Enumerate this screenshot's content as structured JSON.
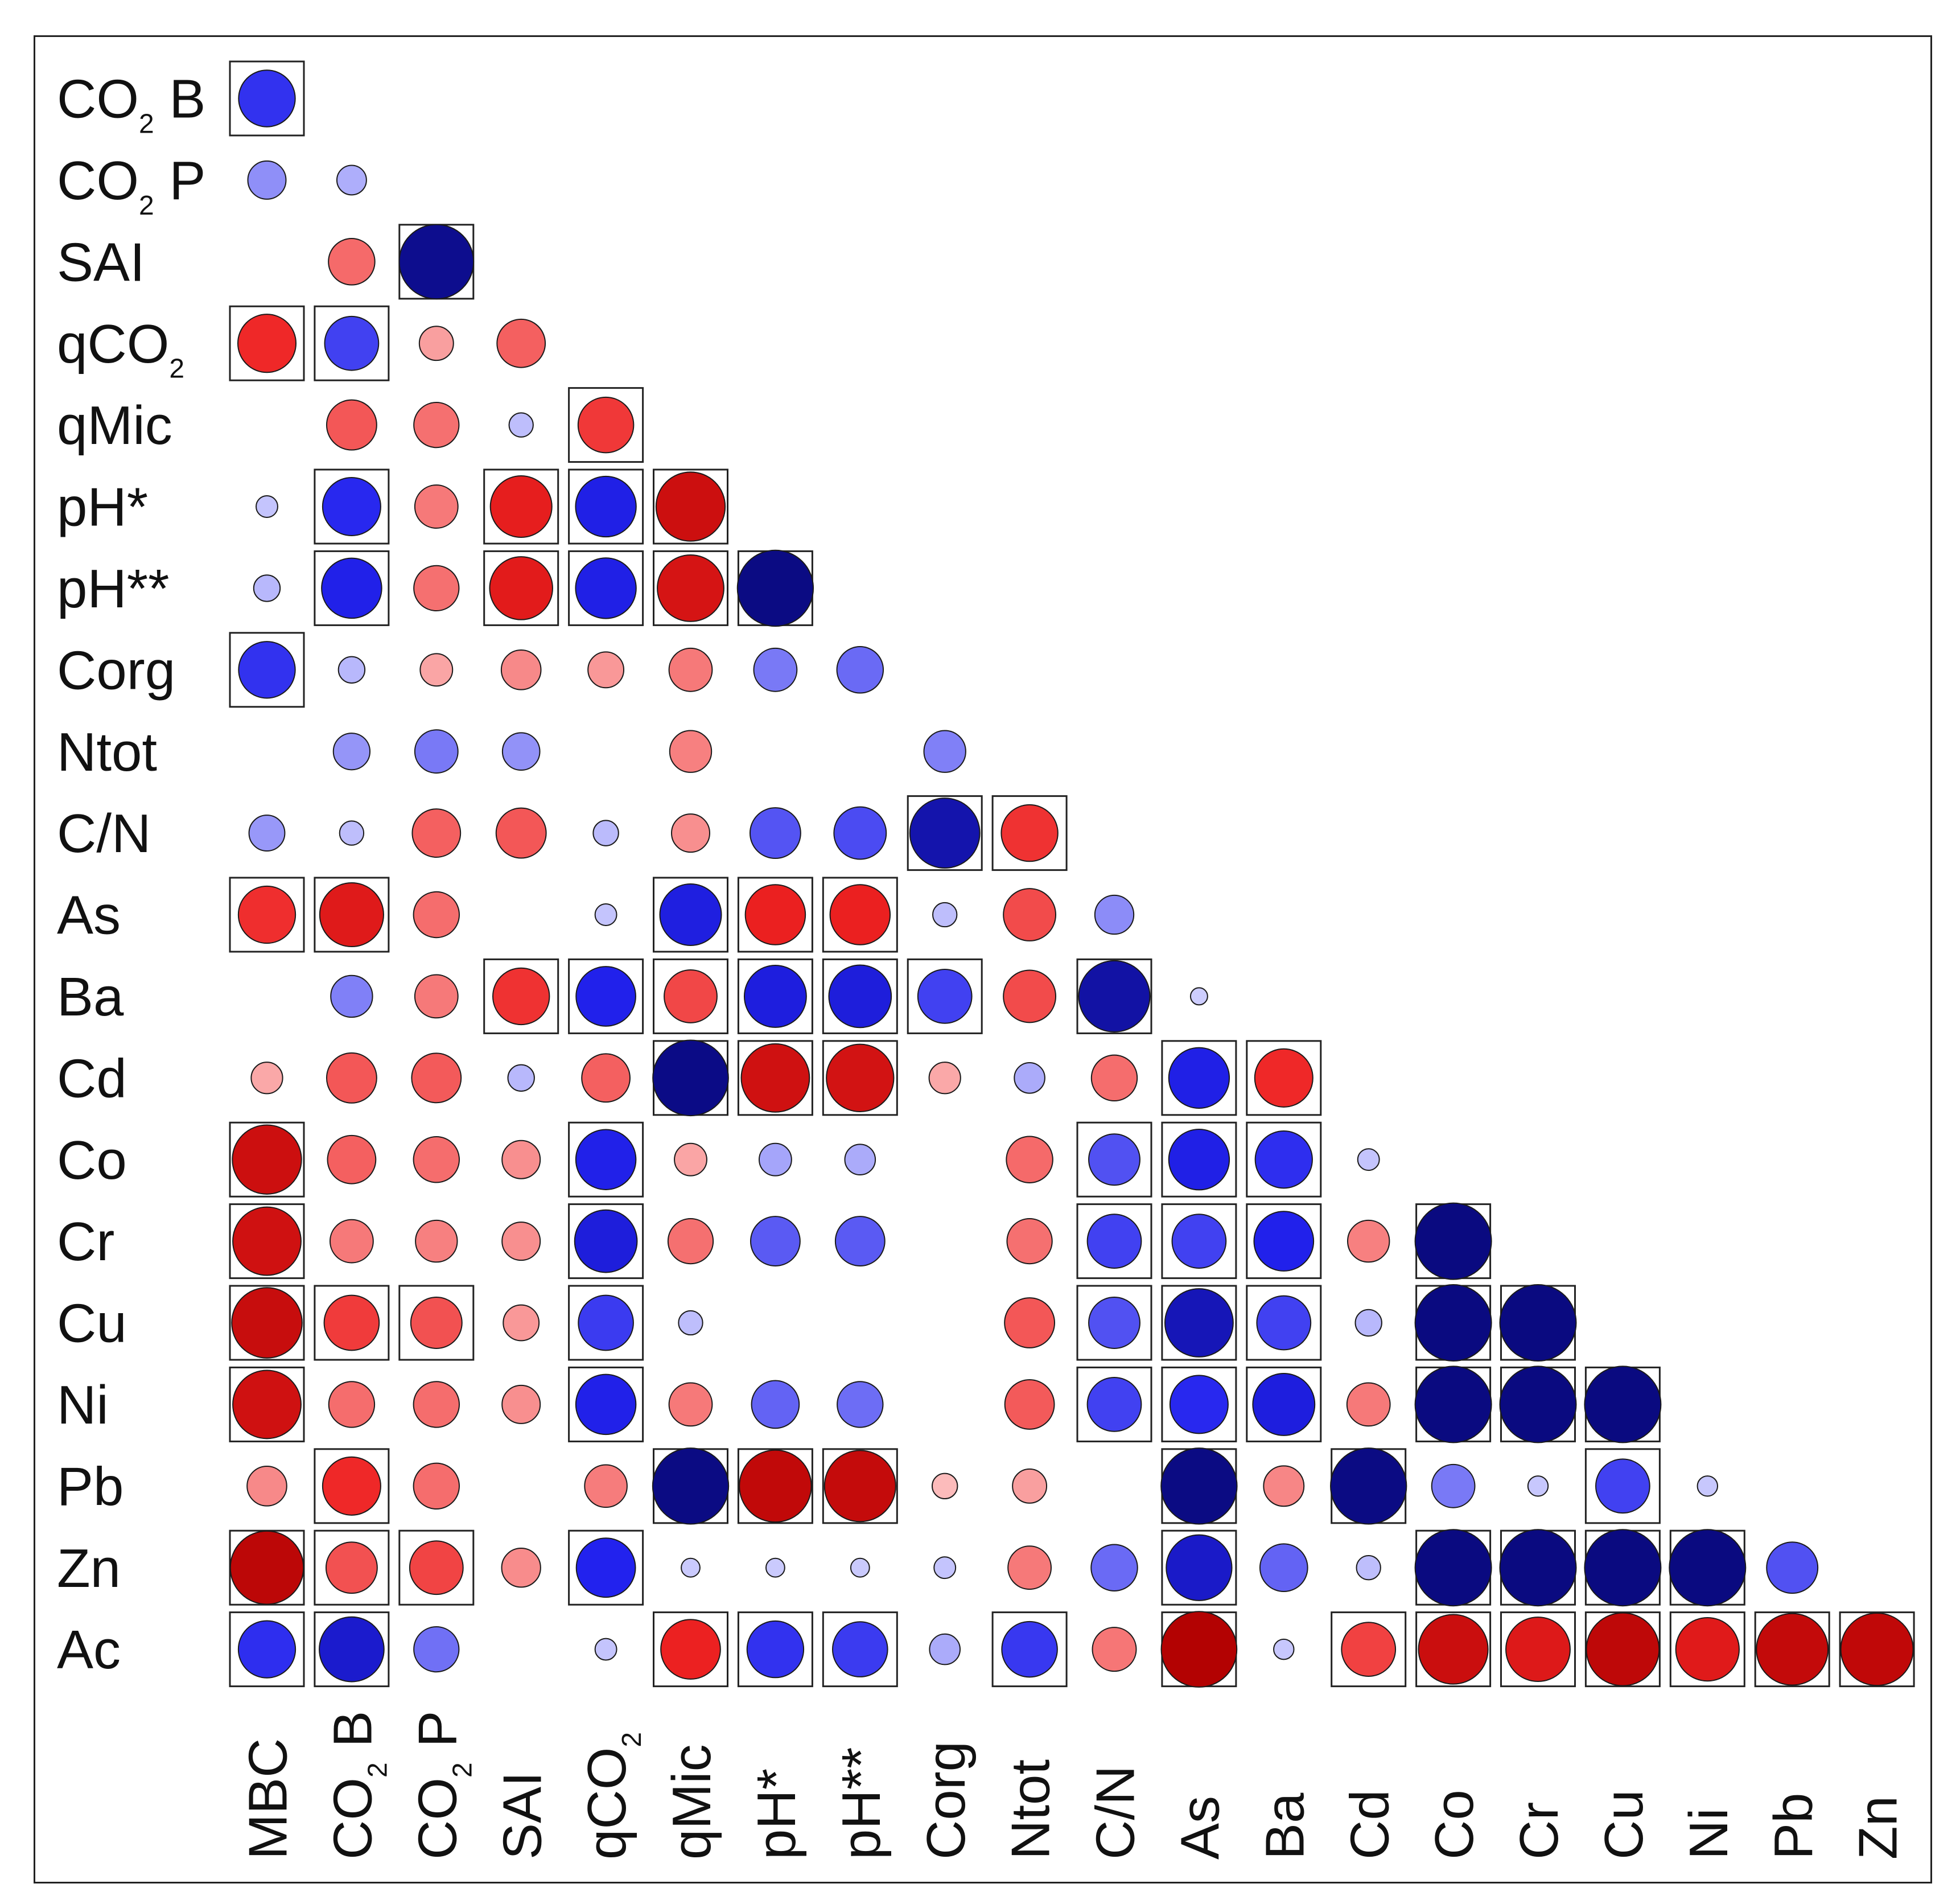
{
  "chart_data": {
    "type": "correlogram",
    "title": "",
    "xlabel": "",
    "ylabel": "",
    "value_range": [
      -1,
      1
    ],
    "positive_color": "#0000cc",
    "negative_color": "#dd0000",
    "significance_marker": "square",
    "columns": [
      {
        "base": "MBC",
        "sub": ""
      },
      {
        "base": "CO",
        "sub": "2",
        "after": " B"
      },
      {
        "base": "CO",
        "sub": "2",
        "after": " P"
      },
      {
        "base": "SAI",
        "sub": ""
      },
      {
        "base": "qCO",
        "sub": "2"
      },
      {
        "base": "qMic",
        "sub": ""
      },
      {
        "base": "pH*",
        "sub": ""
      },
      {
        "base": "pH**",
        "sub": ""
      },
      {
        "base": "Corg",
        "sub": ""
      },
      {
        "base": "Ntot",
        "sub": ""
      },
      {
        "base": "C/N",
        "sub": ""
      },
      {
        "base": "As",
        "sub": ""
      },
      {
        "base": "Ba",
        "sub": ""
      },
      {
        "base": "Cd",
        "sub": ""
      },
      {
        "base": "Co",
        "sub": ""
      },
      {
        "base": "Cr",
        "sub": ""
      },
      {
        "base": "Cu",
        "sub": ""
      },
      {
        "base": "Ni",
        "sub": ""
      },
      {
        "base": "Pb",
        "sub": ""
      },
      {
        "base": "Zn",
        "sub": ""
      }
    ],
    "rows": [
      {
        "base": "CO",
        "sub": "2",
        "after": " B"
      },
      {
        "base": "CO",
        "sub": "2",
        "after": " P"
      },
      {
        "base": "SAI",
        "sub": ""
      },
      {
        "base": "qCO",
        "sub": "2"
      },
      {
        "base": "qMic",
        "sub": ""
      },
      {
        "base": "pH*",
        "sub": ""
      },
      {
        "base": "pH**",
        "sub": ""
      },
      {
        "base": "Corg",
        "sub": ""
      },
      {
        "base": "Ntot",
        "sub": ""
      },
      {
        "base": "C/N",
        "sub": ""
      },
      {
        "base": "As",
        "sub": ""
      },
      {
        "base": "Ba",
        "sub": ""
      },
      {
        "base": "Cd",
        "sub": ""
      },
      {
        "base": "Co",
        "sub": ""
      },
      {
        "base": "Cr",
        "sub": ""
      },
      {
        "base": "Cu",
        "sub": ""
      },
      {
        "base": "Ni",
        "sub": ""
      },
      {
        "base": "Pb",
        "sub": ""
      },
      {
        "base": "Zn",
        "sub": ""
      },
      {
        "base": "Ac",
        "sub": ""
      }
    ],
    "matrix": [
      [
        0.55
      ],
      [
        0.25,
        0.15
      ],
      [
        null,
        -0.37,
        0.95
      ],
      [
        -0.58,
        0.5,
        -0.2,
        -0.4
      ],
      [
        null,
        -0.43,
        -0.35,
        0.1,
        -0.53
      ],
      [
        0.08,
        0.58,
        -0.32,
        -0.65,
        0.63,
        -0.82
      ],
      [
        0.12,
        0.62,
        -0.35,
        -0.68,
        0.63,
        -0.76,
        0.99
      ],
      [
        0.55,
        0.12,
        -0.18,
        -0.27,
        -0.22,
        -0.32,
        0.32,
        0.37
      ],
      [
        null,
        0.23,
        0.32,
        0.24,
        null,
        -0.3,
        null,
        null,
        0.3
      ],
      [
        0.22,
        0.1,
        -0.4,
        -0.43,
        0.11,
        -0.25,
        0.44,
        0.47,
        0.84,
        -0.55
      ],
      [
        -0.56,
        -0.7,
        -0.36,
        null,
        0.08,
        0.65,
        -0.62,
        -0.62,
        0.1,
        -0.47,
        0.26
      ],
      [
        null,
        0.3,
        -0.32,
        -0.55,
        0.61,
        -0.48,
        0.66,
        0.67,
        0.5,
        -0.47,
        0.87,
        0.05
      ],
      [
        -0.17,
        -0.43,
        -0.42,
        0.12,
        -0.4,
        0.98,
        -0.8,
        -0.78,
        -0.17,
        0.16,
        -0.36,
        0.63,
        -0.58
      ],
      [
        -0.82,
        -0.4,
        -0.36,
        -0.25,
        0.62,
        -0.18,
        0.18,
        0.16,
        null,
        -0.37,
        0.45,
        0.63,
        0.56,
        0.08
      ],
      [
        -0.8,
        -0.32,
        -0.3,
        -0.25,
        0.67,
        -0.35,
        0.42,
        0.42,
        null,
        -0.35,
        0.5,
        0.5,
        0.61,
        -0.3,
        1.0
      ],
      [
        -0.85,
        -0.52,
        -0.45,
        -0.22,
        0.52,
        0.1,
        null,
        null,
        null,
        -0.43,
        0.45,
        0.8,
        0.5,
        0.12,
        1.0,
        1.0
      ],
      [
        -0.8,
        -0.36,
        -0.36,
        -0.25,
        0.62,
        -0.32,
        0.39,
        0.36,
        null,
        -0.42,
        0.5,
        0.58,
        0.66,
        -0.32,
        1.0,
        1.0,
        1.0
      ],
      [
        -0.27,
        -0.58,
        -0.36,
        null,
        -0.31,
        0.99,
        -0.89,
        -0.87,
        -0.11,
        -0.2,
        null,
        0.99,
        -0.28,
        0.99,
        0.32,
        0.07,
        0.5,
        0.07
      ],
      [
        -0.92,
        -0.45,
        -0.49,
        -0.26,
        0.6,
        0.06,
        0.06,
        0.06,
        0.08,
        -0.32,
        0.37,
        0.74,
        0.39,
        0.1,
        1.0,
        1.0,
        1.0,
        1.0,
        0.45
      ],
      [
        0.56,
        0.72,
        0.35,
        null,
        0.08,
        -0.61,
        0.55,
        0.52,
        0.16,
        0.53,
        -0.33,
        -0.98,
        0.07,
        -0.5,
        -0.83,
        -0.71,
        -0.91,
        -0.69,
        -0.88,
        -0.9
      ]
    ],
    "significant": [
      [
        true
      ],
      [
        false,
        false
      ],
      [
        false,
        false,
        true
      ],
      [
        true,
        true,
        false,
        false
      ],
      [
        false,
        false,
        false,
        false,
        true
      ],
      [
        false,
        true,
        false,
        true,
        true,
        true
      ],
      [
        false,
        true,
        false,
        true,
        true,
        true,
        true
      ],
      [
        true,
        false,
        false,
        false,
        false,
        false,
        false,
        false
      ],
      [
        false,
        false,
        false,
        false,
        false,
        false,
        false,
        false,
        false
      ],
      [
        false,
        false,
        false,
        false,
        false,
        false,
        false,
        false,
        true,
        true
      ],
      [
        true,
        true,
        false,
        false,
        false,
        true,
        true,
        true,
        false,
        false,
        false
      ],
      [
        false,
        false,
        false,
        true,
        true,
        true,
        true,
        true,
        true,
        false,
        true,
        false
      ],
      [
        false,
        false,
        false,
        false,
        false,
        true,
        true,
        true,
        false,
        false,
        false,
        true,
        true
      ],
      [
        true,
        false,
        false,
        false,
        true,
        false,
        false,
        false,
        false,
        false,
        true,
        true,
        true,
        false
      ],
      [
        true,
        false,
        false,
        false,
        true,
        false,
        false,
        false,
        false,
        false,
        true,
        true,
        true,
        false,
        true
      ],
      [
        true,
        true,
        true,
        false,
        true,
        false,
        false,
        false,
        false,
        false,
        true,
        true,
        true,
        false,
        true,
        true
      ],
      [
        true,
        false,
        false,
        false,
        true,
        false,
        false,
        false,
        false,
        false,
        true,
        true,
        true,
        false,
        true,
        true,
        true
      ],
      [
        false,
        true,
        false,
        false,
        false,
        true,
        true,
        true,
        false,
        false,
        false,
        true,
        false,
        true,
        false,
        false,
        true,
        false
      ],
      [
        true,
        true,
        true,
        false,
        true,
        false,
        false,
        false,
        false,
        false,
        false,
        true,
        false,
        false,
        true,
        true,
        true,
        true,
        false
      ],
      [
        true,
        true,
        false,
        false,
        false,
        true,
        true,
        true,
        false,
        true,
        false,
        true,
        false,
        true,
        true,
        true,
        true,
        true,
        true,
        true
      ]
    ]
  }
}
